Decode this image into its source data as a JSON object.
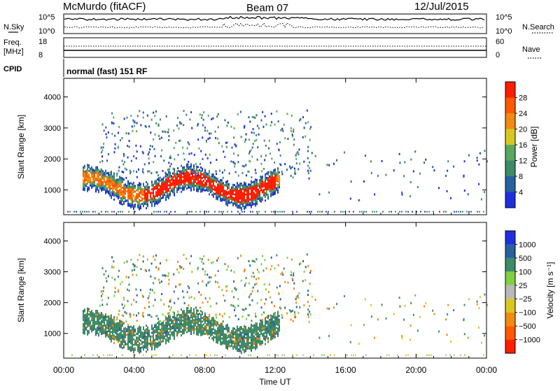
{
  "header": {
    "radar": "McMurdo (fitACF)",
    "beam": "Beam 07",
    "date": "12/Jul/2015"
  },
  "noise_panel": {
    "left_label": "N.Sky",
    "right_label": "N.Search",
    "left_ticks": [
      "10^5",
      "10^0"
    ],
    "right_ticks": [
      "10^5",
      "10^0"
    ]
  },
  "freq_panel": {
    "left_label_1": "Freq.",
    "left_label_2": "[MHz]",
    "left_ticks": [
      "18",
      "8"
    ],
    "right_label": "Nave",
    "right_ticks": [
      "60",
      "0"
    ]
  },
  "cpid": {
    "label": "CPID",
    "text": "normal (fast) 151 RF"
  },
  "colors": {
    "power_scale": [
      "#1f2fe0",
      "#2a5fa0",
      "#3f8a68",
      "#5aa860",
      "#d6c821",
      "#f08a10",
      "#ff5a00",
      "#ff1e00"
    ],
    "velocity_scale": [
      "#ff1e00",
      "#ff5a00",
      "#f08a10",
      "#d6c821",
      "#b8b8b8",
      "#7fd040",
      "#3f8a68",
      "#2a5fa0",
      "#1f2fe0"
    ]
  },
  "chart_data": [
    {
      "type": "heatmap",
      "name": "power",
      "ylabel": "Slant Range [km]",
      "xlabel": "Time UT",
      "y_ticks": [
        "1000",
        "2000",
        "3000",
        "4000"
      ],
      "y_values": [
        1000,
        2000,
        3000,
        4000
      ],
      "ylim": [
        200,
        4600
      ],
      "xlim_hours": [
        0,
        24
      ],
      "colorbar": {
        "label": "Power [dB]",
        "ticks": [
          "4",
          "8",
          "12",
          "16",
          "20",
          "24",
          "28"
        ],
        "values": [
          4,
          8,
          12,
          16,
          20,
          24,
          28
        ],
        "range": [
          0,
          32
        ]
      }
    },
    {
      "type": "heatmap",
      "name": "velocity",
      "ylabel": "Slant Range [km]",
      "xlabel": "Time UT",
      "y_ticks": [
        "1000",
        "2000",
        "3000",
        "4000"
      ],
      "y_values": [
        1000,
        2000,
        3000,
        4000
      ],
      "ylim": [
        200,
        4600
      ],
      "xlim_hours": [
        0,
        24
      ],
      "colorbar": {
        "label": "Velocity [m s⁻¹]",
        "ticks": [
          "1000",
          "500",
          "100",
          "25",
          "−25",
          "−100",
          "−500",
          "−1000"
        ]
      }
    }
  ],
  "x_axis": {
    "ticks": [
      "00:00",
      "04:00",
      "08:00",
      "12:00",
      "16:00",
      "20:00",
      "00:00"
    ],
    "hours": [
      0,
      4,
      8,
      12,
      16,
      20,
      24
    ],
    "label": "Time UT"
  }
}
